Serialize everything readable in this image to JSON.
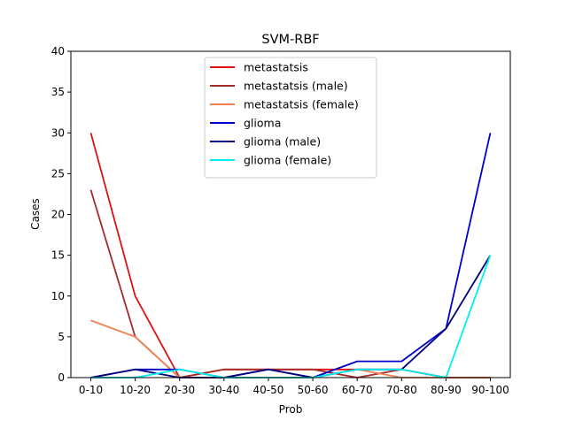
{
  "chart_data": {
    "type": "line",
    "title": "SVM-RBF",
    "xlabel": "Prob",
    "ylabel": "Cases",
    "categories": [
      "0-10",
      "10-20",
      "20-30",
      "30-40",
      "40-50",
      "50-60",
      "60-70",
      "70-80",
      "80-90",
      "90-100"
    ],
    "ylim": [
      0,
      40
    ],
    "yticks": [
      0,
      5,
      10,
      15,
      20,
      25,
      30,
      35,
      40
    ],
    "grid": false,
    "legend_position": "upper center",
    "series": [
      {
        "name": "metastatsis",
        "color": "#dd1111",
        "values": [
          30,
          10,
          0,
          1,
          1,
          1,
          1,
          1,
          0,
          0
        ]
      },
      {
        "name": "metastatsis (male)",
        "color": "#a52a2a",
        "values": [
          23,
          5,
          0,
          1,
          1,
          1,
          0,
          1,
          0,
          0
        ]
      },
      {
        "name": "metastatsis (female)",
        "color": "#f08050",
        "values": [
          7,
          5,
          0,
          0,
          0,
          0,
          1,
          0,
          0,
          0
        ]
      },
      {
        "name": "glioma",
        "color": "#0000cd",
        "values": [
          0,
          1,
          1,
          0,
          1,
          0,
          2,
          2,
          6,
          30
        ]
      },
      {
        "name": "glioma (male)",
        "color": "#000080",
        "values": [
          0,
          1,
          0,
          0,
          1,
          0,
          1,
          1,
          6,
          15
        ]
      },
      {
        "name": "glioma (female)",
        "color": "#00eeee",
        "values": [
          0,
          0,
          1,
          0,
          0,
          0,
          1,
          1,
          0,
          15
        ]
      }
    ]
  }
}
